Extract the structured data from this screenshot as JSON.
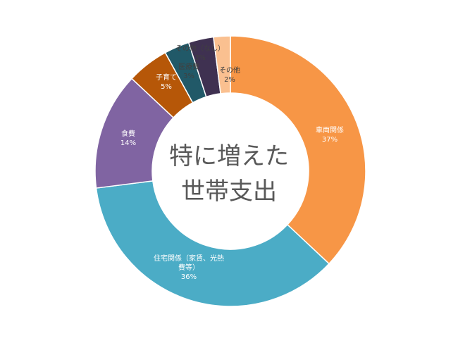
{
  "chart_data": {
    "type": "pie",
    "variant": "donut",
    "title_lines": [
      "特に増えた",
      "世帯支出"
    ],
    "slices": [
      {
        "name": "車両関係",
        "value": 37,
        "value_label": "37%",
        "color": "#F79646",
        "label_lines": [
          "車両関係"
        ],
        "label_color": "#ffffff"
      },
      {
        "name": "住宅関係（家賃、光熱費等）",
        "value": 36,
        "value_label": "36%",
        "color": "#4BACC6",
        "label_lines": [
          "住宅関係（家賃、光熱",
          "費等）"
        ],
        "label_color": "#ffffff"
      },
      {
        "name": "食費",
        "value": 14,
        "value_label": "14%",
        "color": "#8064A2",
        "label_lines": [
          "食費"
        ],
        "label_color": "#ffffff"
      },
      {
        "name": "子育て",
        "value": 5,
        "value_label": "5%",
        "color": "#B65708",
        "label_lines": [
          "子育て"
        ],
        "label_color": "#ffffff"
      },
      {
        "name": "医療費",
        "value": 3,
        "value_label": "3%",
        "color": "#215968",
        "label_lines": [
          "医療費"
        ],
        "label_color": "#404040"
      },
      {
        "name": "その他（なし）",
        "value": 3,
        "value_label": "3%",
        "color": "#3F3151",
        "label_lines": [
          "その他（なし）"
        ],
        "label_color": "#404040"
      },
      {
        "name": "その他",
        "value": 2,
        "value_label": "2%",
        "color": "#FAC090",
        "label_lines": [
          "その他"
        ],
        "label_color": "#404040"
      }
    ],
    "legend": "none"
  }
}
